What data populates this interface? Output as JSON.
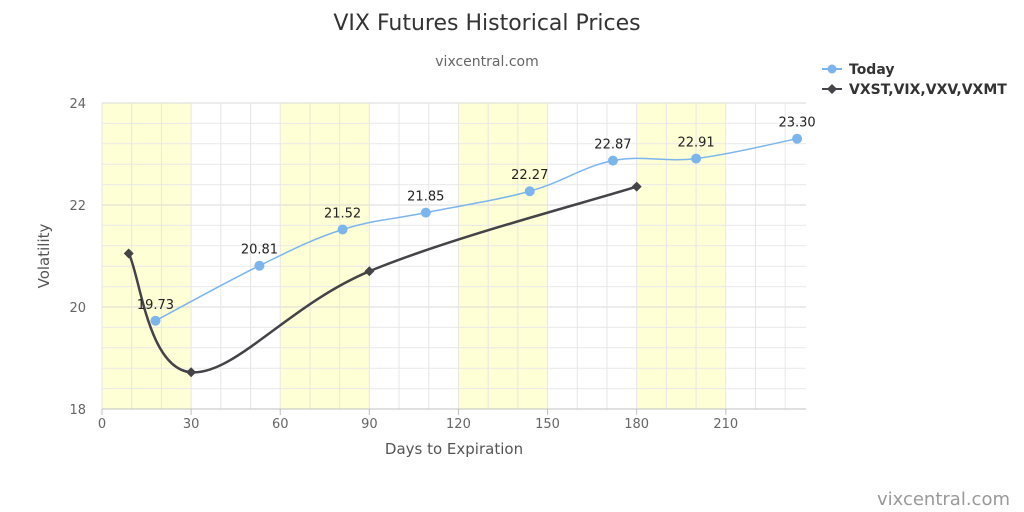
{
  "chart_data": {
    "type": "line",
    "title": "VIX Futures Historical Prices",
    "subtitle": "vixcentral.com",
    "xlabel": "Days to Expiration",
    "ylabel": "Volatility",
    "xlim": [
      0,
      237
    ],
    "ylim": [
      18,
      24
    ],
    "x_ticks": [
      0,
      30,
      60,
      90,
      120,
      150,
      180,
      210
    ],
    "y_ticks": [
      18,
      20,
      22,
      24
    ],
    "shaded_bands": [
      [
        0,
        30
      ],
      [
        60,
        90
      ],
      [
        120,
        150
      ],
      [
        180,
        210
      ]
    ],
    "grid": true,
    "legend_position": "top-right",
    "series": [
      {
        "name": "Today",
        "color": "#7cb5ec",
        "marker": "circle",
        "points": [
          {
            "x": 18,
            "y": 19.73,
            "label": "19.73"
          },
          {
            "x": 53,
            "y": 20.81,
            "label": "20.81"
          },
          {
            "x": 81,
            "y": 21.52,
            "label": "21.52"
          },
          {
            "x": 109,
            "y": 21.85,
            "label": "21.85"
          },
          {
            "x": 144,
            "y": 22.27,
            "label": "22.27"
          },
          {
            "x": 172,
            "y": 22.87,
            "label": "22.87"
          },
          {
            "x": 200,
            "y": 22.91,
            "label": "22.91"
          },
          {
            "x": 234,
            "y": 23.3,
            "label": "23.30"
          }
        ]
      },
      {
        "name": "VXST,VIX,VXV,VXMT",
        "color": "#434348",
        "marker": "diamond",
        "points": [
          {
            "x": 9,
            "y": 21.05
          },
          {
            "x": 30,
            "y": 18.72
          },
          {
            "x": 90,
            "y": 20.7
          },
          {
            "x": 180,
            "y": 22.36
          }
        ]
      }
    ]
  },
  "credit": "vixcentral.com"
}
